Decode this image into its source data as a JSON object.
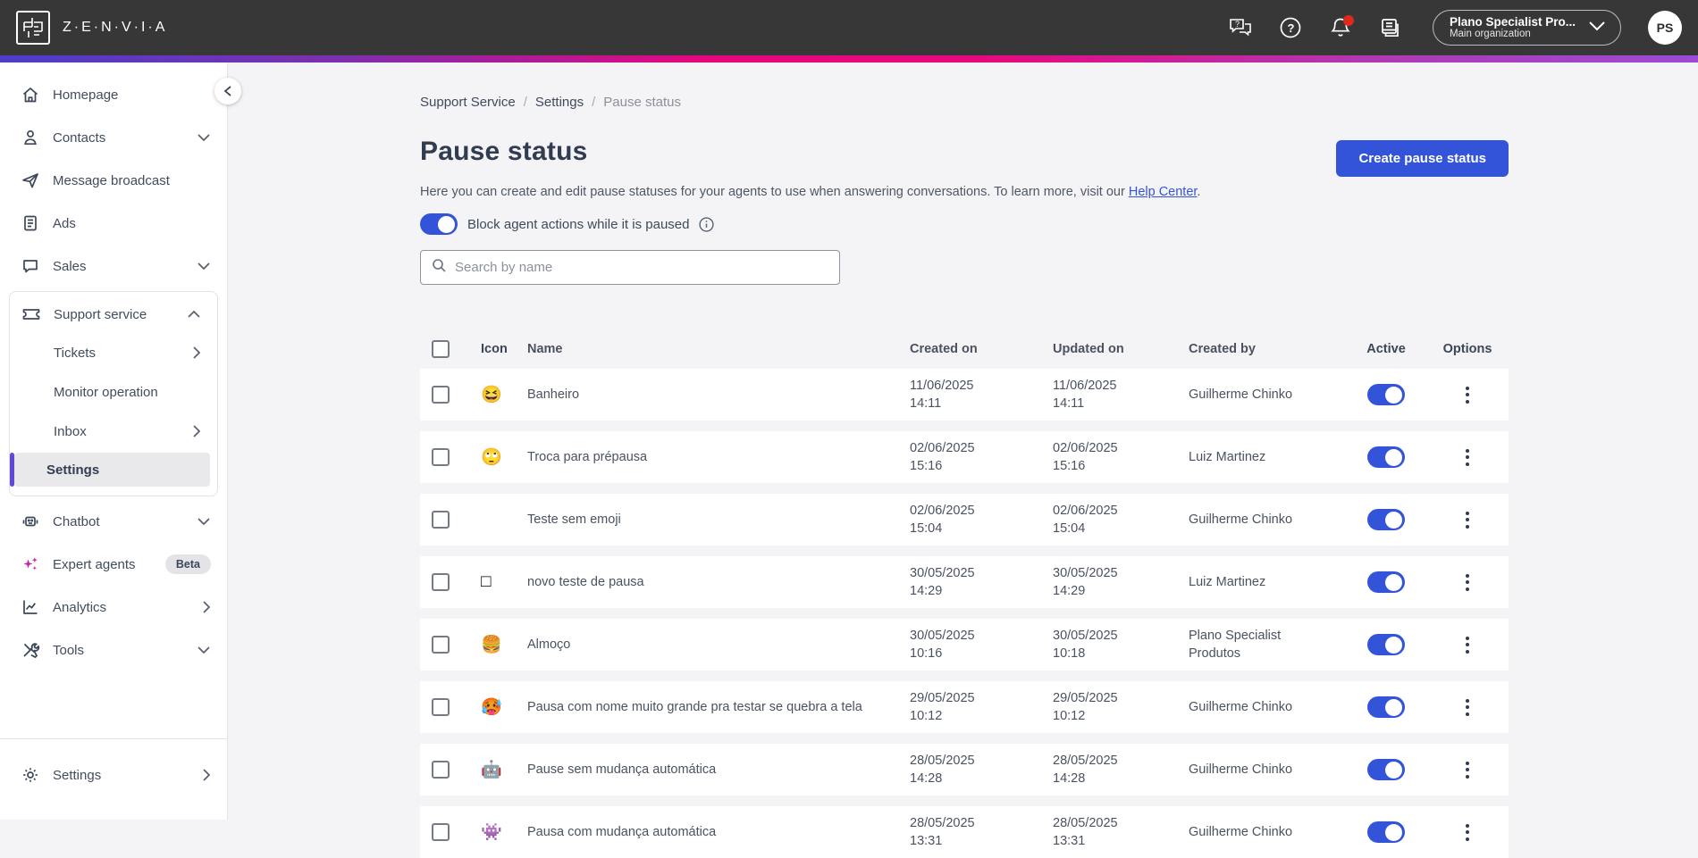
{
  "topbar": {
    "brand": "Z·E·N·V·I·A",
    "icons": [
      "chat-support-icon",
      "help-icon",
      "notifications-icon",
      "organization-icon"
    ],
    "org_name": "Plano Specialist Pro...",
    "org_subtitle": "Main organization",
    "avatar_initials": "PS"
  },
  "sidebar": {
    "items": [
      {
        "label": "Homepage",
        "icon": "home-icon"
      },
      {
        "label": "Contacts",
        "icon": "contacts-icon",
        "chevron": "down"
      },
      {
        "label": "Message broadcast",
        "icon": "paper-plane-icon"
      },
      {
        "label": "Ads",
        "icon": "ads-document-icon"
      },
      {
        "label": "Sales",
        "icon": "chat-bubble-icon",
        "chevron": "down"
      }
    ],
    "support": {
      "label": "Support service",
      "icon": "ticket-icon",
      "chevron": "up",
      "children": [
        {
          "label": "Tickets",
          "chevron": "right"
        },
        {
          "label": "Monitor operation"
        },
        {
          "label": "Inbox",
          "chevron": "right"
        },
        {
          "label": "Settings",
          "selected": true
        }
      ]
    },
    "lower": [
      {
        "label": "Chatbot",
        "icon": "robot-icon",
        "chevron": "down"
      },
      {
        "label": "Expert agents",
        "icon": "sparkles-icon",
        "badge": "Beta"
      },
      {
        "label": "Analytics",
        "icon": "analytics-chart-icon",
        "chevron": "right"
      },
      {
        "label": "Tools",
        "icon": "tools-icon",
        "chevron": "down"
      }
    ],
    "bottom": {
      "label": "Settings",
      "icon": "gear-icon",
      "chevron": "right"
    }
  },
  "breadcrumb": {
    "items": [
      "Support Service",
      "Settings",
      "Pause status"
    ]
  },
  "page": {
    "title": "Pause status",
    "description": "Here you can create and edit pause statuses for your agents to use when answering conversations. To learn more, visit our",
    "help_link": "Help Center",
    "description_suffix": ".",
    "block_toggle_label": "Block agent actions while it is paused",
    "block_toggle_on": true,
    "create_button": "Create pause status",
    "search_placeholder": "Search by name"
  },
  "table": {
    "headers": {
      "icon": "Icon",
      "name": "Name",
      "created_on": "Created on",
      "updated_on": "Updated on",
      "created_by": "Created by",
      "active": "Active",
      "options": "Options"
    },
    "rows": [
      {
        "icon": "😆",
        "name": "Banheiro",
        "created_date": "11/06/2025",
        "created_time": "14:11",
        "updated_date": "11/06/2025",
        "updated_time": "14:11",
        "created_by": "Guilherme Chinko",
        "active": true
      },
      {
        "icon": "🙄",
        "name": "Troca para prépausa",
        "created_date": "02/06/2025",
        "created_time": "15:16",
        "updated_date": "02/06/2025",
        "updated_time": "15:16",
        "created_by": "Luiz Martinez",
        "active": true
      },
      {
        "icon": "",
        "name": "Teste sem emoji",
        "created_date": "02/06/2025",
        "created_time": "15:04",
        "updated_date": "02/06/2025",
        "updated_time": "15:04",
        "created_by": "Guilherme Chinko",
        "active": true
      },
      {
        "icon": "□",
        "name": "novo teste de pausa",
        "created_date": "30/05/2025",
        "created_time": "14:29",
        "updated_date": "30/05/2025",
        "updated_time": "14:29",
        "created_by": "Luiz Martinez",
        "active": true
      },
      {
        "icon": "🍔",
        "name": "Almoço",
        "created_date": "30/05/2025",
        "created_time": "10:16",
        "updated_date": "30/05/2025",
        "updated_time": "10:18",
        "created_by": "Plano Specialist Produtos",
        "active": true
      },
      {
        "icon": "🥵",
        "name": "Pausa com nome muito grande pra testar se quebra a tela",
        "created_date": "29/05/2025",
        "created_time": "10:12",
        "updated_date": "29/05/2025",
        "updated_time": "10:12",
        "created_by": "Guilherme Chinko",
        "active": true
      },
      {
        "icon": "🤖",
        "name": "Pause sem mudança automática",
        "created_date": "28/05/2025",
        "created_time": "14:28",
        "updated_date": "28/05/2025",
        "updated_time": "14:28",
        "created_by": "Guilherme Chinko",
        "active": true
      },
      {
        "icon": "👾",
        "name": "Pausa com mudança automática",
        "created_date": "28/05/2025",
        "created_time": "13:31",
        "updated_date": "28/05/2025",
        "updated_time": "13:31",
        "created_by": "Guilherme Chinko",
        "active": true
      }
    ]
  },
  "colors": {
    "accent_blue": "#3353d9",
    "topbar_bg": "#373737",
    "gradient_left": "#4d3ecb",
    "gradient_mid": "#e6067e",
    "gradient_right": "#9b4bd6",
    "selected_indicator": "#5f49d6",
    "notification_dot": "#e0281e"
  }
}
